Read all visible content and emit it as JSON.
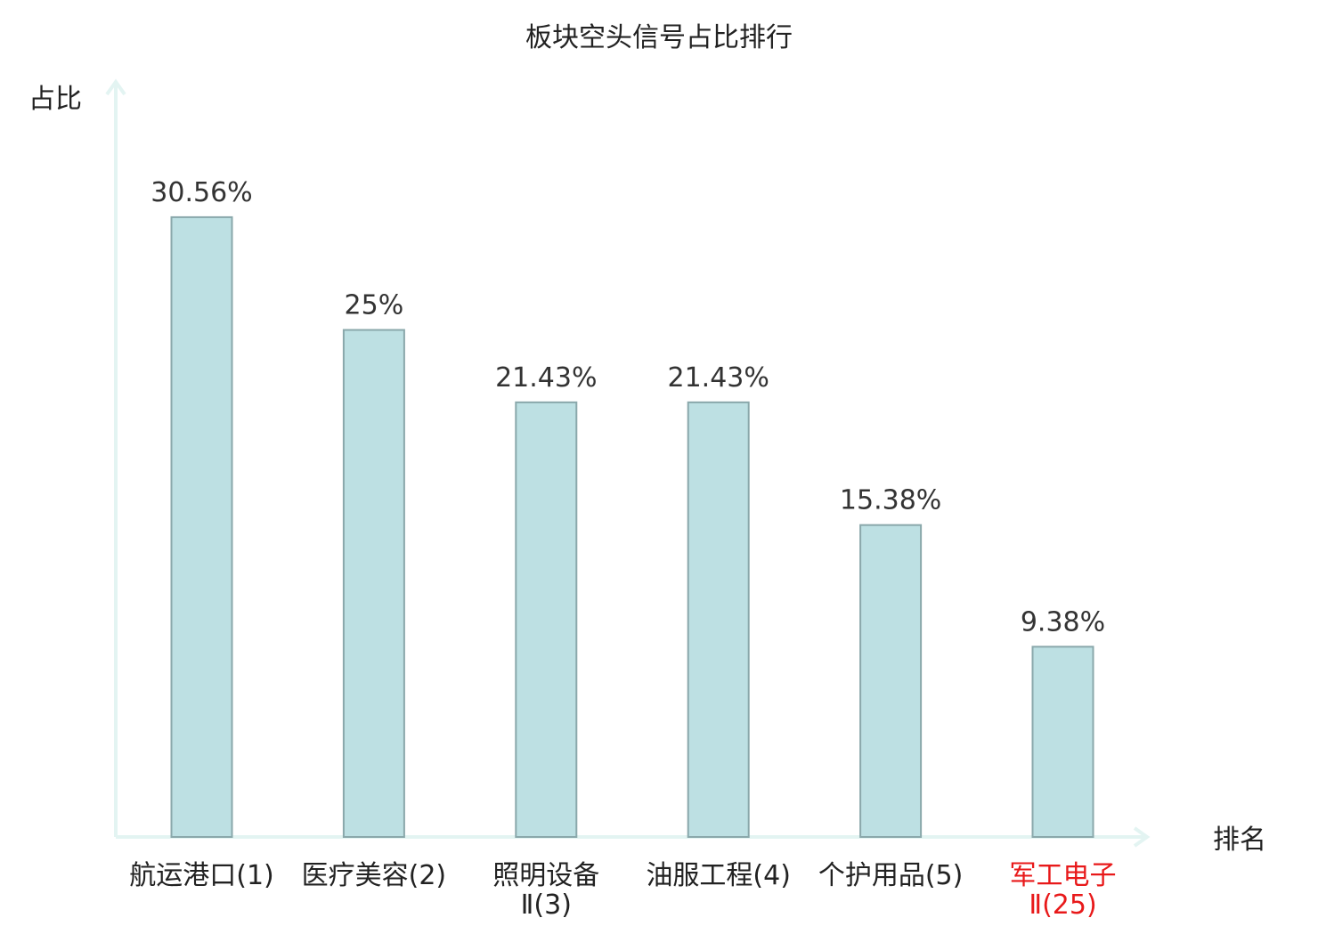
{
  "chart_data": {
    "type": "bar",
    "title": "板块空头信号占比排行",
    "ylabel": "占比",
    "xlabel": "排名",
    "ylim": [
      0,
      36
    ],
    "grid": false,
    "categories": [
      [
        "航运港口(1)"
      ],
      [
        "医疗美容(2)"
      ],
      [
        "照明设备",
        "Ⅱ(3)"
      ],
      [
        "油服工程(4)"
      ],
      [
        "个护用品(5)"
      ],
      [
        "军工电子",
        "Ⅱ(25)"
      ]
    ],
    "values": [
      30.56,
      25,
      21.43,
      21.43,
      15.38,
      9.38
    ],
    "value_labels": [
      "30.56%",
      "25%",
      "21.43%",
      "21.43%",
      "15.38%",
      "9.38%"
    ],
    "highlight_index": 5
  },
  "colors": {
    "bar_fill": "#bde0e3",
    "bar_stroke": "#8aa8ab",
    "axis": "#e3f4f2",
    "text": "#222222",
    "highlight": "#e8191a"
  }
}
